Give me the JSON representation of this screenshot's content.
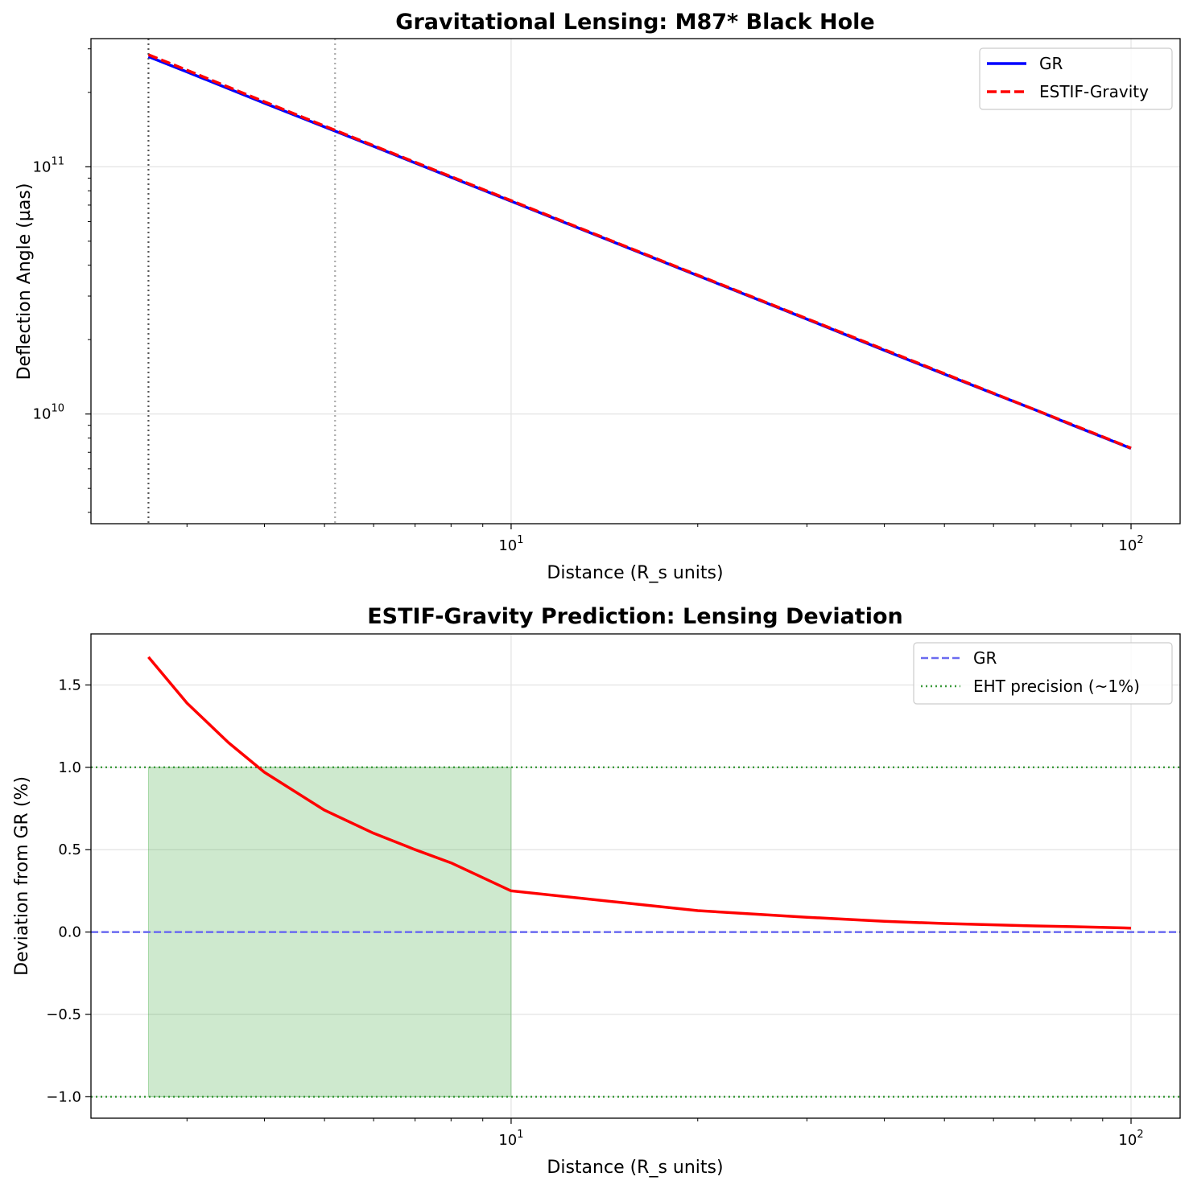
{
  "chart_data": [
    {
      "type": "line",
      "title": "Gravitational Lensing: M87* Black Hole",
      "xlabel": "Distance (R_s units)",
      "ylabel": "Deflection Angle (µas)",
      "xscale": "log",
      "yscale": "log",
      "xlim": [
        2.1,
        120
      ],
      "ylim": [
        3600000000.0,
        330000000000.0
      ],
      "xticks": [
        {
          "value": 10,
          "base": "10",
          "exp": "1"
        },
        {
          "value": 100,
          "base": "10",
          "exp": "2"
        }
      ],
      "yticks": [
        {
          "value": 10000000000.0,
          "base": "10",
          "exp": "10"
        },
        {
          "value": 100000000000.0,
          "base": "10",
          "exp": "11"
        }
      ],
      "vlines": [
        {
          "x": 2.6,
          "style": "dotted",
          "color": "#555555"
        },
        {
          "x": 5.2,
          "style": "dotted",
          "color": "#aaaaaa"
        }
      ],
      "x": [
        2.6,
        3,
        4,
        5,
        6,
        8,
        10,
        15,
        20,
        30,
        40,
        50,
        60,
        70,
        80,
        90,
        100
      ],
      "series": [
        {
          "name": "GR",
          "color": "#0000ff",
          "style": "solid",
          "values": [
            279000000000.0,
            242000000000.0,
            181000000000.0,
            145000000000.0,
            121000000000.0,
            90700000000.0,
            72600000000.0,
            48400000000.0,
            36300000000.0,
            24200000000.0,
            18100000000.0,
            14500000000.0,
            12100000000.0,
            10400000000.0,
            9070000000.0,
            8060000000.0,
            7260000000.0
          ]
        },
        {
          "name": "ESTIF-Gravity",
          "color": "#ff0000",
          "style": "dashed",
          "values": [
            284000000000.0,
            246100000000.0,
            183300000000.0,
            146300000000.0,
            121800000000.0,
            91280000000.0,
            73000000000.0,
            48630000000.0,
            36460000000.0,
            24300000000.0,
            18220000000.0,
            14570000000.0,
            12140000000.0,
            10410000000.0,
            9110000000.0,
            8090000000.0,
            7280000000.0
          ]
        }
      ],
      "legend": "top-right",
      "grid": true
    },
    {
      "type": "line",
      "title": "ESTIF-Gravity Prediction: Lensing Deviation",
      "xlabel": "Distance (R_s units)",
      "ylabel": "Deviation from GR (%)",
      "xscale": "log",
      "yscale": "linear",
      "xlim": [
        2.1,
        120
      ],
      "ylim": [
        -1.13,
        1.81
      ],
      "xticks": [
        {
          "value": 10,
          "base": "10",
          "exp": "1"
        },
        {
          "value": 100,
          "base": "10",
          "exp": "2"
        }
      ],
      "yticks": [
        {
          "value": 1.5,
          "label": "1.5"
        },
        {
          "value": 1.0,
          "label": "1.0"
        },
        {
          "value": 0.5,
          "label": "0.5"
        },
        {
          "value": 0.0,
          "label": "0.0"
        },
        {
          "value": -0.5,
          "label": "−0.5"
        },
        {
          "value": -1.0,
          "label": "−1.0"
        }
      ],
      "shaded_region": {
        "x": [
          2.6,
          10
        ],
        "y": [
          -1,
          1
        ],
        "color": "#2ca02c",
        "alpha": 0.23
      },
      "hlines": [
        {
          "name": "GR",
          "y": 0,
          "color": "#6a6af0",
          "style": "dashed",
          "in_legend": true
        },
        {
          "name": "EHT precision (~1%)",
          "y": 1,
          "color": "#3a9a3a",
          "style": "dotted",
          "in_legend": true
        },
        {
          "name": "EHT precision (~1%)",
          "y": -1,
          "color": "#3a9a3a",
          "style": "dotted",
          "in_legend": false
        }
      ],
      "x": [
        2.6,
        3,
        3.5,
        4,
        5,
        6,
        7,
        8,
        10,
        15,
        20,
        30,
        40,
        50,
        60,
        70,
        80,
        100
      ],
      "series": [
        {
          "name": "",
          "color": "#ff0000",
          "style": "solid",
          "values": [
            1.67,
            1.39,
            1.15,
            0.97,
            0.74,
            0.6,
            0.5,
            0.42,
            0.25,
            0.18,
            0.13,
            0.09,
            0.065,
            0.052,
            0.044,
            0.037,
            0.033,
            0.024
          ]
        }
      ],
      "legend": "top-right",
      "grid": true
    }
  ]
}
